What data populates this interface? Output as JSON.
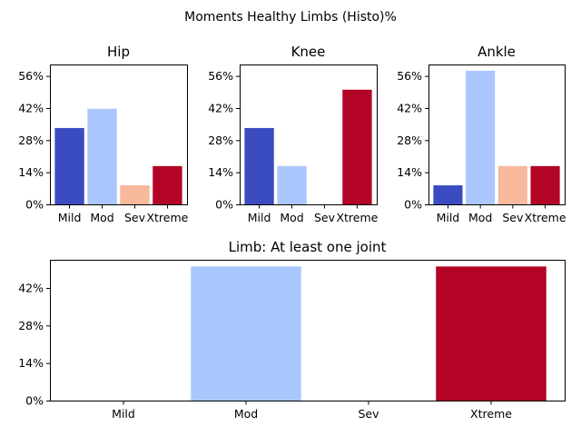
{
  "figure": {
    "title": "Moments Healthy Limbs (Histo)%"
  },
  "chart_data": [
    {
      "type": "bar",
      "title": "Hip",
      "categories": [
        "Mild",
        "Mod",
        "Sev",
        "Xtreme"
      ],
      "values": [
        33.3,
        41.7,
        8.3,
        16.7
      ],
      "colors": [
        "#3b4cc0",
        "#aac7fd",
        "#f7b89c",
        "#b40426"
      ],
      "ylim": [
        0,
        61
      ],
      "yticks": [
        0,
        14,
        28,
        42,
        56
      ],
      "ytick_labels": [
        "0%",
        "14%",
        "28%",
        "42%",
        "56%"
      ],
      "xlabel": "",
      "ylabel": ""
    },
    {
      "type": "bar",
      "title": "Knee",
      "categories": [
        "Mild",
        "Mod",
        "Sev",
        "Xtreme"
      ],
      "values": [
        33.3,
        16.7,
        0,
        50
      ],
      "colors": [
        "#3b4cc0",
        "#aac7fd",
        "#f7b89c",
        "#b40426"
      ],
      "ylim": [
        0,
        61
      ],
      "yticks": [
        0,
        14,
        28,
        42,
        56
      ],
      "ytick_labels": [
        "0%",
        "14%",
        "28%",
        "42%",
        "56%"
      ],
      "xlabel": "",
      "ylabel": ""
    },
    {
      "type": "bar",
      "title": "Ankle",
      "categories": [
        "Mild",
        "Mod",
        "Sev",
        "Xtreme"
      ],
      "values": [
        8.3,
        58.3,
        16.7,
        16.7
      ],
      "colors": [
        "#3b4cc0",
        "#aac7fd",
        "#f7b89c",
        "#b40426"
      ],
      "ylim": [
        0,
        61
      ],
      "yticks": [
        0,
        14,
        28,
        42,
        56
      ],
      "ytick_labels": [
        "0%",
        "14%",
        "28%",
        "42%",
        "56%"
      ],
      "xlabel": "",
      "ylabel": ""
    },
    {
      "type": "bar",
      "title": "Limb: At least one joint",
      "categories": [
        "Mild",
        "Mod",
        "Sev",
        "Xtreme"
      ],
      "values": [
        0,
        50,
        0,
        50
      ],
      "colors": [
        "#3b4cc0",
        "#aac7fd",
        "#f7b89c",
        "#b40426"
      ],
      "ylim": [
        0,
        52.5
      ],
      "yticks": [
        0,
        14,
        28,
        42
      ],
      "ytick_labels": [
        "0%",
        "14%",
        "28%",
        "42%"
      ],
      "xlabel": "",
      "ylabel": ""
    }
  ]
}
